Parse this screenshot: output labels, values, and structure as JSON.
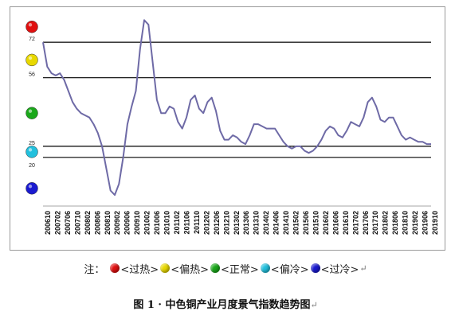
{
  "chart_data": {
    "type": "line",
    "title": "",
    "xlabel": "",
    "ylabel": "",
    "ylim": [
      -2,
      85
    ],
    "x_tick_labels": [
      "200610",
      "200702",
      "200706",
      "200710",
      "200802",
      "200806",
      "200810",
      "200902",
      "200906",
      "200910",
      "201002",
      "201006",
      "201010",
      "201102",
      "201106",
      "201110",
      "201202",
      "201206",
      "201210",
      "201302",
      "201306",
      "201310",
      "201402",
      "201406",
      "201410",
      "201502",
      "201506",
      "201510",
      "201602",
      "201606",
      "201610",
      "201702",
      "201706",
      "201710",
      "201802",
      "201806",
      "201810",
      "201902",
      "201906",
      "201910"
    ],
    "thresholds": [
      {
        "value": 72,
        "label": "72"
      },
      {
        "value": 56,
        "label": "56"
      },
      {
        "value": 25,
        "label": "25"
      },
      {
        "value": 20,
        "label": "20"
      }
    ],
    "zone_colors": [
      "#e01010",
      "#e8d800",
      "#1aa81a",
      "#22c0dd",
      "#1a1ad0"
    ],
    "series": [
      {
        "color": "#6e6aa6",
        "values": [
          72,
          61,
          58,
          57,
          58,
          55,
          50,
          45,
          42,
          40,
          39,
          38,
          35,
          31,
          25,
          15,
          5,
          3,
          8,
          20,
          35,
          43,
          50,
          69,
          82,
          80,
          63,
          46,
          40,
          40,
          43,
          42,
          36,
          33,
          38,
          46,
          48,
          42,
          40,
          45,
          47,
          41,
          32,
          28,
          28,
          30,
          29,
          27,
          26,
          30,
          35,
          35,
          34,
          33,
          33,
          33,
          30,
          27,
          25,
          24,
          25,
          25,
          23,
          22,
          23,
          25,
          28,
          32,
          34,
          33,
          30,
          29,
          32,
          36,
          35,
          34,
          38,
          45,
          47,
          43,
          37,
          36,
          38,
          38,
          34,
          30,
          28,
          29,
          28,
          27,
          27,
          26,
          26
        ]
      }
    ]
  },
  "legend": {
    "note": "注：",
    "items": [
      {
        "label": "<过热>",
        "color": "#e01010"
      },
      {
        "label": "<偏热>",
        "color": "#e8d800"
      },
      {
        "label": "<正常>",
        "color": "#1aa81a"
      },
      {
        "label": "<偏冷>",
        "color": "#22c0dd"
      },
      {
        "label": "<过冷>",
        "color": "#1a1ad0"
      }
    ],
    "return_mark": "↵"
  },
  "caption": {
    "text": "图 1 ·  中色铜产业月度景气指数趋势图",
    "return_mark": "↵"
  }
}
